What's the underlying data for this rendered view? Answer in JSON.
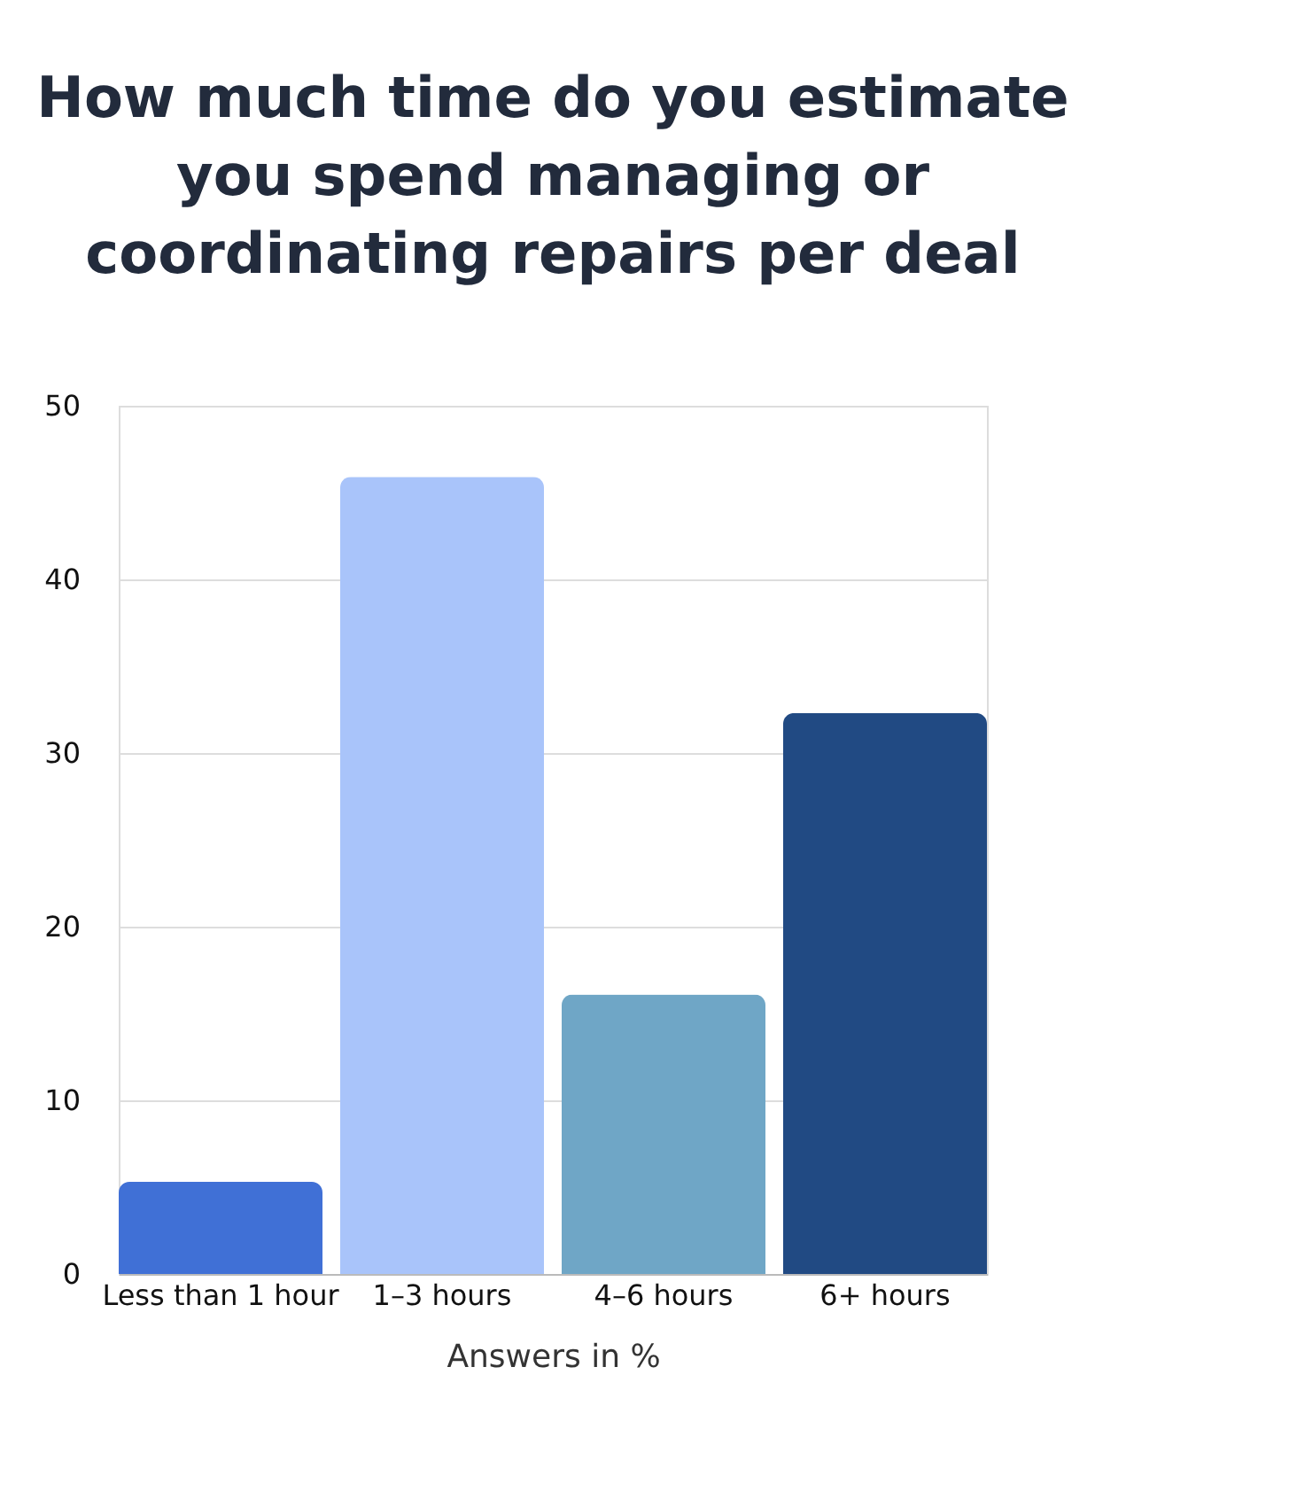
{
  "chart_data": {
    "type": "bar",
    "title": "How much time do you estimate you spend managing or coordinating repairs per deal",
    "categories": [
      "Less than 1 hour",
      "1–3 hours",
      "4–6 hours",
      "6+ hours"
    ],
    "values": [
      5.3,
      45.9,
      16.1,
      32.3
    ],
    "colors": [
      "#4070d6",
      "#a9c4fa",
      "#6fa6c6",
      "#214a83"
    ],
    "xlabel": "Answers in %",
    "ylim": [
      0,
      50
    ],
    "yticks": [
      0,
      10,
      20,
      30,
      40,
      50
    ],
    "grid": "y"
  }
}
